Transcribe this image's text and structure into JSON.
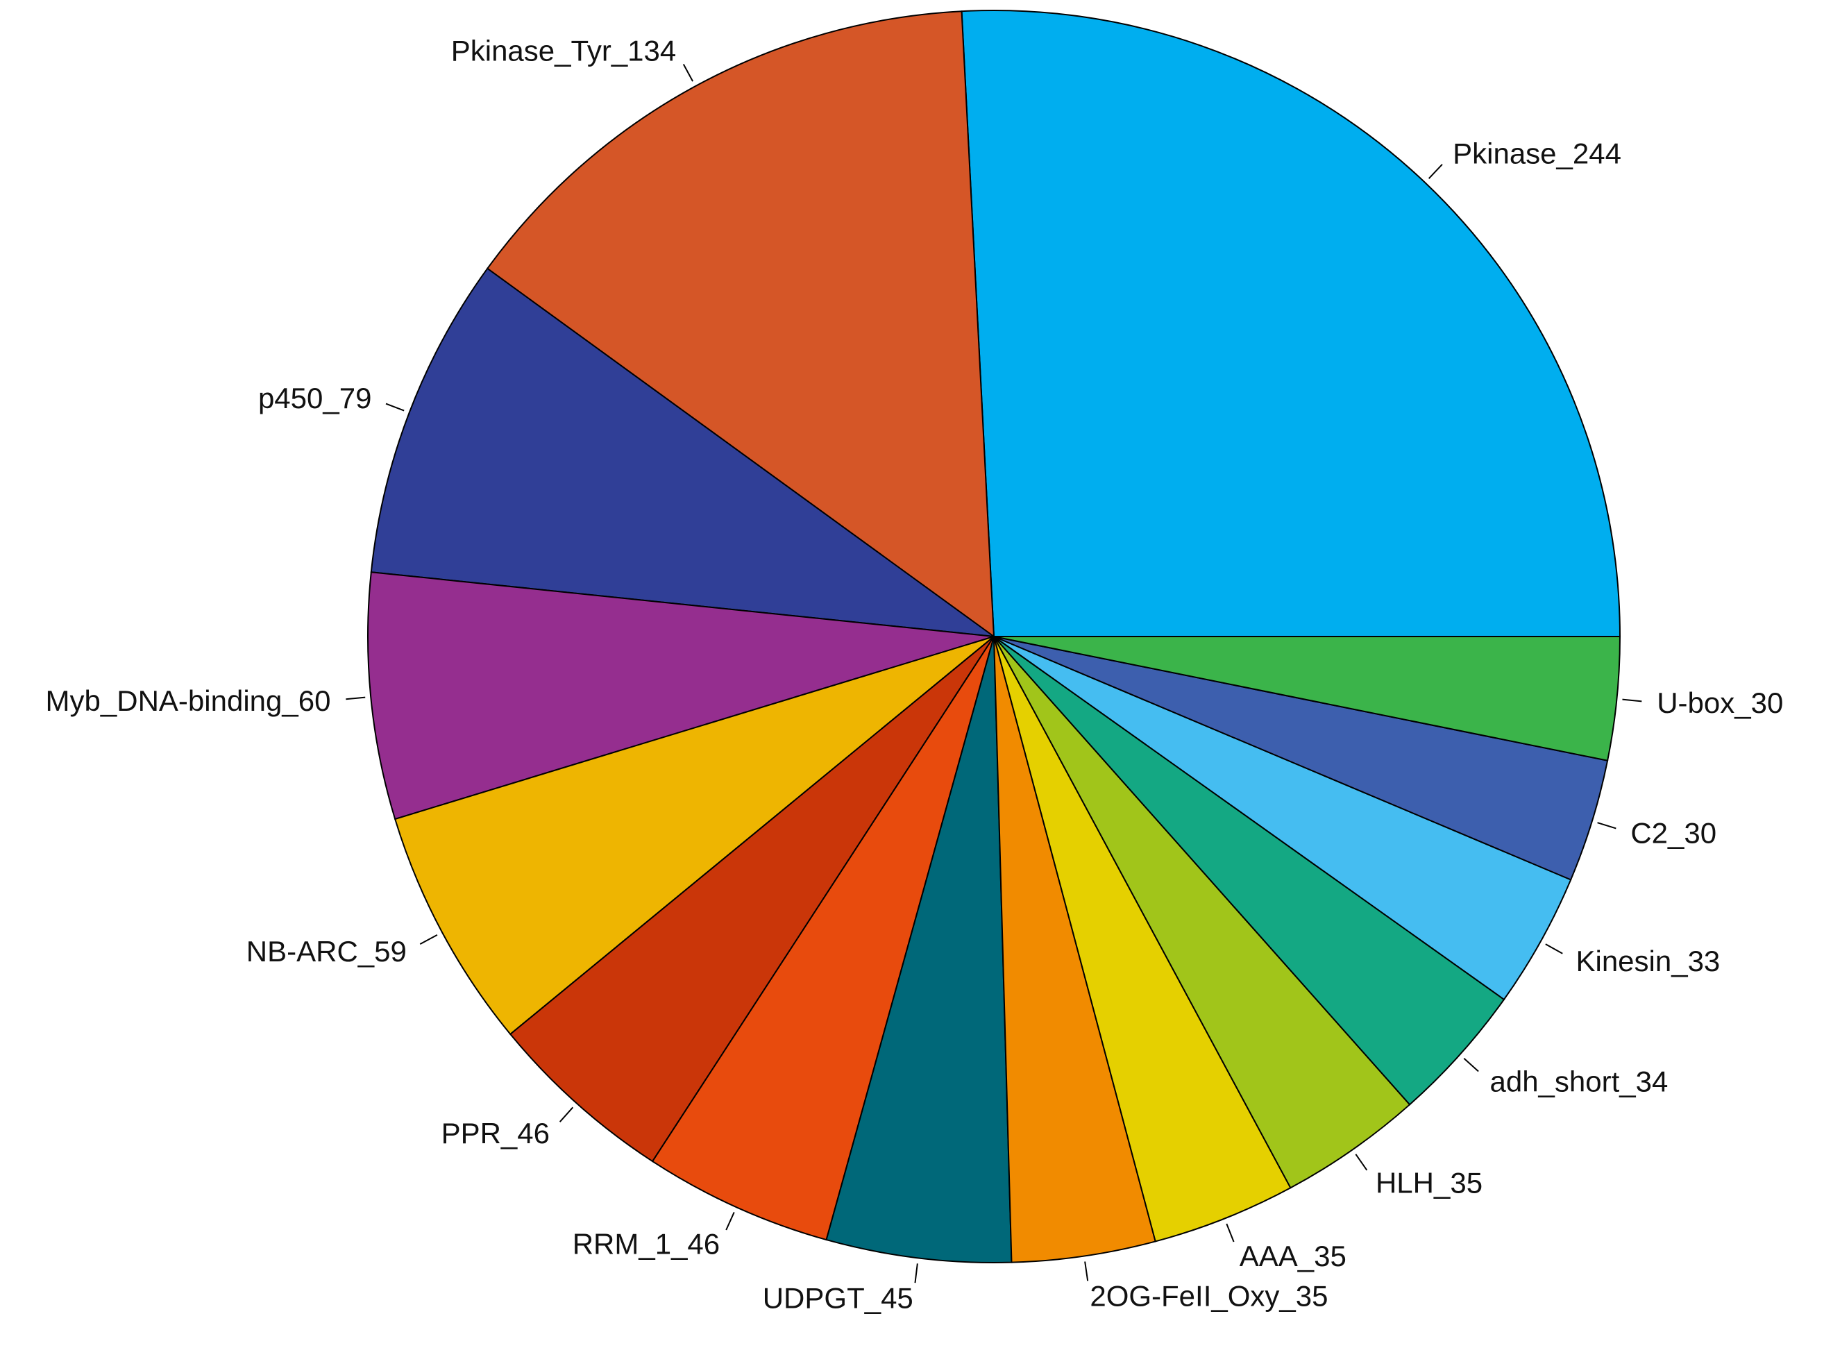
{
  "chart_data": {
    "type": "pie",
    "direction": "counterclockwise",
    "start": "3 o'clock",
    "slices": [
      {
        "label": "Pkinase_244",
        "value": 244,
        "color": "#00AEEF"
      },
      {
        "label": "Pkinase_Tyr_134",
        "value": 134,
        "color": "#D55627"
      },
      {
        "label": "p450_79",
        "value": 79,
        "color": "#303F97"
      },
      {
        "label": "Myb_DNA-binding_60",
        "value": 60,
        "color": "#952E8F"
      },
      {
        "label": "NB-ARC_59",
        "value": 59,
        "color": "#EEB501"
      },
      {
        "label": "PPR_46",
        "value": 46,
        "color": "#CA3609"
      },
      {
        "label": "RRM_1_46",
        "value": 46,
        "color": "#E84B0D"
      },
      {
        "label": "UDPGT_45",
        "value": 45,
        "color": "#006879"
      },
      {
        "label": "2OG-FeII_Oxy_35",
        "value": 35,
        "color": "#F18B00"
      },
      {
        "label": "AAA_35",
        "value": 35,
        "color": "#E5D000"
      },
      {
        "label": "HLH_35",
        "value": 35,
        "color": "#A1C51A"
      },
      {
        "label": "adh_short_34",
        "value": 34,
        "color": "#14A883"
      },
      {
        "label": "Kinesin_33",
        "value": 33,
        "color": "#45BDF1"
      },
      {
        "label": "C2_30",
        "value": 30,
        "color": "#3D5FAE"
      },
      {
        "label": "U-box_30",
        "value": 30,
        "color": "#3BB44A"
      }
    ]
  }
}
